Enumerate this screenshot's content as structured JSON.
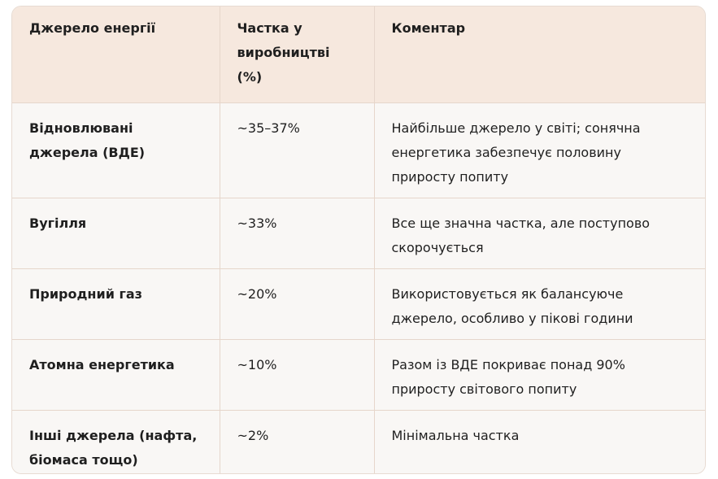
{
  "table": {
    "headers": [
      "Джерело енергії",
      "Частка у виробництві (%)",
      "Коментар"
    ],
    "rows": [
      {
        "source": "Відновлювані джерела (ВДЕ)",
        "share": "~35–37%",
        "comment": "Найбільше джерело у світі; сонячна енергетика забезпечує половину приросту попиту"
      },
      {
        "source": "Вугілля",
        "share": "~33%",
        "comment": "Все ще значна частка, але поступово скорочується"
      },
      {
        "source": "Природний газ",
        "share": "~20%",
        "comment": "Використовується як балансуюче джерело, особливо у пікові години"
      },
      {
        "source": "Атомна енергетика",
        "share": "~10%",
        "comment": "Разом із ВДЕ покриває понад 90% приросту світового попиту"
      },
      {
        "source": "Інші джерела (нафта, біомаса тощо)",
        "share": "~2%",
        "comment": "Мінімальна частка"
      }
    ]
  }
}
